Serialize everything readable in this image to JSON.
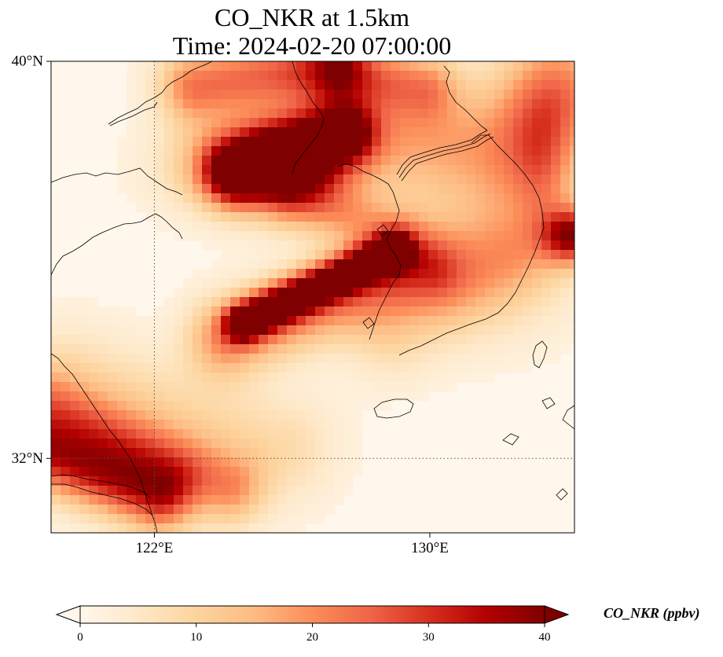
{
  "title_line1": "CO_NKR at 1.5km",
  "title_line2": "Time: 2024-02-20 07:00:00",
  "map": {
    "lon_range": [
      119,
      134.2
    ],
    "lat_range": [
      30.5,
      40
    ],
    "lat_ticks": [
      {
        "value": 40,
        "label": "40°N"
      },
      {
        "value": 32,
        "label": "32°N"
      }
    ],
    "lon_ticks": [
      {
        "value": 122,
        "label": "122°E"
      },
      {
        "value": 130,
        "label": "130°E"
      }
    ],
    "gridlines": {
      "lon": [
        122
      ],
      "lat": [
        32
      ]
    }
  },
  "colorbar": {
    "label": "CO_NKR (ppbv)",
    "min": 0,
    "max": 40,
    "ticks": [
      {
        "value": 0,
        "label": "0"
      },
      {
        "value": 10,
        "label": "10"
      },
      {
        "value": 20,
        "label": "20"
      },
      {
        "value": 30,
        "label": "30"
      },
      {
        "value": 40,
        "label": "40"
      }
    ],
    "extend": "both",
    "colormap": "OrRd",
    "colors": [
      "#fff7ec",
      "#fee8c8",
      "#fdd49e",
      "#fdbb84",
      "#fc8d59",
      "#ef6548",
      "#d7301f",
      "#b30000",
      "#7f0000"
    ]
  }
}
